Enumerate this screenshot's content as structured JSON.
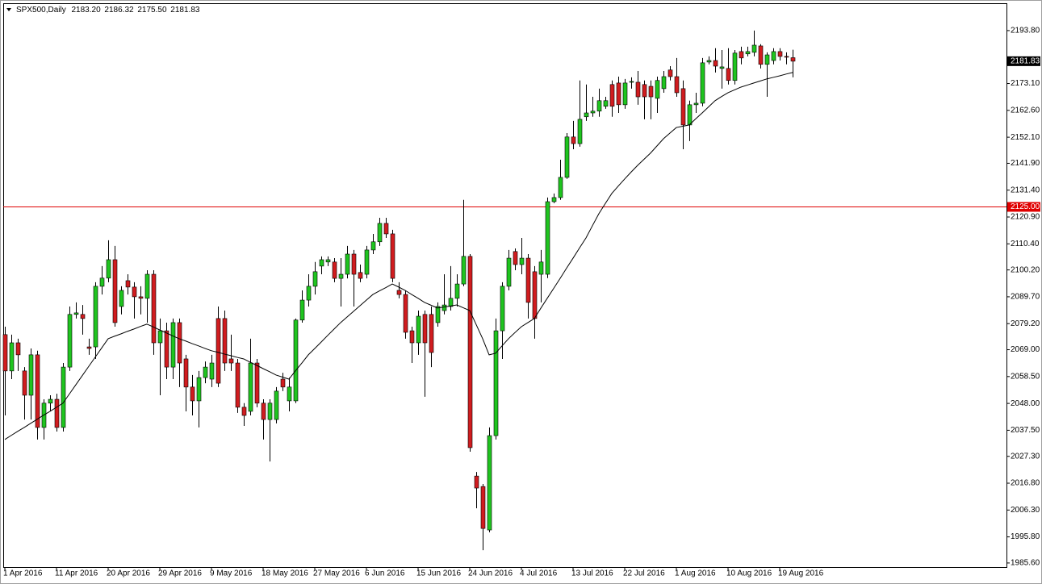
{
  "chart_data": {
    "type": "candlestick",
    "symbol": "SPX500,Daily",
    "header_ohlc": [
      "2183.20",
      "2186.32",
      "2175.50",
      "2181.83"
    ],
    "categories": [
      "1 Apr 2016",
      null,
      null,
      null,
      null,
      null,
      null,
      null,
      "11 Apr 2016",
      null,
      null,
      null,
      null,
      null,
      null,
      null,
      "20 Apr 2016",
      null,
      null,
      null,
      null,
      null,
      null,
      null,
      "29 Apr 2016",
      null,
      null,
      null,
      null,
      null,
      null,
      null,
      "9 May 2016",
      null,
      null,
      null,
      null,
      null,
      null,
      null,
      "18 May 2016",
      null,
      null,
      null,
      null,
      null,
      null,
      null,
      "27 May 2016",
      null,
      null,
      null,
      null,
      null,
      null,
      null,
      "6 Jun 2016",
      null,
      null,
      null,
      null,
      null,
      null,
      null,
      "15 Jun 2016",
      null,
      null,
      null,
      null,
      null,
      null,
      null,
      "24 Jun 2016",
      null,
      null,
      null,
      null,
      null,
      null,
      null,
      "4 Jul 2016",
      null,
      null,
      null,
      null,
      null,
      null,
      null,
      "13 Jul 2016",
      null,
      null,
      null,
      null,
      null,
      null,
      null,
      "22 Jul 2016",
      null,
      null,
      null,
      null,
      null,
      null,
      null,
      "1 Aug 2016",
      null,
      null,
      null,
      null,
      null,
      null,
      null,
      "10 Aug 2016",
      null,
      null,
      null,
      null,
      null,
      null,
      null,
      "19 Aug 2016",
      null,
      null
    ],
    "open": [
      2074.9,
      2060.7,
      2071.7,
      2060.7,
      2051.2,
      2067.0,
      2038.6,
      2048.1,
      2049.6,
      2038.6,
      2062.2,
      2082.8,
      2082.8,
      2070.1,
      2070.1,
      2093.8,
      2097.0,
      2104.2,
      2085.9,
      2096.0,
      2093.5,
      2089.7,
      2089.1,
      2098.5,
      2071.7,
      2076.4,
      2062.2,
      2079.6,
      2065.4,
      2054.4,
      2049.0,
      2058.1,
      2057.5,
      2081.2,
      2081.2,
      2065.4,
      2063.8,
      2046.5,
      2044.9,
      2063.8,
      2048.1,
      2041.7,
      2041.7,
      2057.5,
      2049.0,
      2049.0,
      2080.6,
      2088.4,
      2093.8,
      2101.7,
      2103.3,
      2103.3,
      2096.9,
      2098.5,
      2106.4,
      2099.2,
      2098.5,
      2108.0,
      2111.2,
      2118.4,
      2114.3,
      2092.2,
      2090.6,
      2076.4,
      2071.7,
      2082.8,
      2082.8,
      2079.6,
      2084.3,
      2085.9,
      2089.1,
      2094.7,
      2105.5,
      2019.6,
      2015.5,
      1998.5,
      2035.4,
      2076.4,
      2093.8,
      2107.4,
      2102.3,
      2104.8,
      2099.5,
      2098.5,
      2098.5,
      2126.9,
      2128.5,
      2136.4,
      2152.2,
      2149.6,
      2160.1,
      2161.6,
      2162.3,
      2164.2,
      2172.7,
      2173.3,
      2164.8,
      2173.6,
      2173.6,
      2172.7,
      2172.0,
      2167.3,
      2171.1,
      2178.4,
      2175.8,
      2171.1,
      2156.9,
      2164.8,
      2165.4,
      2181.5,
      2182.1,
      2179.0,
      2179.0,
      2174.3,
      2185.6,
      2184.7,
      2185.3,
      2187.8,
      2180.6,
      2182.1,
      2185.6,
      2183.7,
      2183.2
    ],
    "high": [
      2078.0,
      2074.9,
      2073.3,
      2062.2,
      2069.5,
      2068.6,
      2049.6,
      2051.2,
      2051.8,
      2063.8,
      2085.9,
      2087.5,
      2086.5,
      2073.3,
      2095.4,
      2101.7,
      2111.8,
      2109.6,
      2093.8,
      2098.5,
      2095.4,
      2093.8,
      2100.1,
      2100.1,
      2081.2,
      2079.6,
      2081.2,
      2081.2,
      2067.0,
      2059.1,
      2060.7,
      2064.4,
      2067.0,
      2085.9,
      2084.3,
      2074.9,
      2065.4,
      2048.1,
      2073.3,
      2065.4,
      2049.6,
      2049.6,
      2054.4,
      2060.0,
      2058.1,
      2081.2,
      2092.2,
      2098.5,
      2103.3,
      2105.5,
      2105.5,
      2104.8,
      2104.8,
      2109.6,
      2108.0,
      2102.3,
      2109.6,
      2114.3,
      2120.6,
      2120.6,
      2115.9,
      2095.4,
      2092.2,
      2078.0,
      2084.3,
      2084.3,
      2085.9,
      2087.5,
      2098.5,
      2101.7,
      2098.5,
      2127.6,
      2106.4,
      2021.2,
      2016.5,
      2038.6,
      2081.2,
      2095.4,
      2108.0,
      2108.6,
      2112.7,
      2106.4,
      2101.7,
      2108.0,
      2128.5,
      2130.1,
      2143.3,
      2153.7,
      2158.5,
      2174.3,
      2172.7,
      2167.9,
      2171.1,
      2167.9,
      2174.3,
      2175.8,
      2174.9,
      2175.5,
      2178.0,
      2174.3,
      2174.3,
      2175.8,
      2178.0,
      2179.9,
      2183.1,
      2174.3,
      2166.4,
      2169.5,
      2183.1,
      2183.7,
      2186.9,
      2186.2,
      2186.9,
      2186.2,
      2187.5,
      2187.5,
      2193.8,
      2188.5,
      2185.3,
      2186.9,
      2186.9,
      2185.3,
      2186.32
    ],
    "low": [
      2043.3,
      2057.5,
      2060.7,
      2041.7,
      2041.7,
      2033.9,
      2033.9,
      2044.9,
      2037.0,
      2037.0,
      2060.7,
      2081.2,
      2074.9,
      2067.0,
      2065.4,
      2090.6,
      2095.4,
      2078.0,
      2082.8,
      2090.6,
      2081.2,
      2082.8,
      2079.6,
      2067.0,
      2051.2,
      2057.5,
      2057.5,
      2054.4,
      2044.9,
      2043.3,
      2038.6,
      2055.9,
      2054.4,
      2054.4,
      2060.7,
      2060.7,
      2044.3,
      2039.2,
      2043.3,
      2046.5,
      2033.9,
      2025.3,
      2040.2,
      2052.8,
      2044.9,
      2048.1,
      2079.6,
      2085.9,
      2090.6,
      2098.5,
      2101.7,
      2095.4,
      2085.9,
      2096.9,
      2085.9,
      2095.4,
      2096.9,
      2106.4,
      2109.6,
      2112.7,
      2095.4,
      2089.1,
      2073.3,
      2063.8,
      2067.0,
      2050.6,
      2062.2,
      2078.0,
      2082.8,
      2084.3,
      2085.9,
      2093.8,
      2029.1,
      2007.0,
      1990.6,
      1997.6,
      2033.9,
      2065.4,
      2092.2,
      2100.1,
      2098.5,
      2081.2,
      2073.3,
      2087.5,
      2097.0,
      2126.3,
      2127.6,
      2135.8,
      2147.4,
      2148.4,
      2158.5,
      2160.1,
      2160.1,
      2163.2,
      2160.1,
      2161.6,
      2163.2,
      2171.1,
      2164.8,
      2159.1,
      2159.1,
      2161.6,
      2169.5,
      2174.3,
      2167.9,
      2147.4,
      2150.6,
      2161.6,
      2164.2,
      2180.6,
      2177.4,
      2171.1,
      2172.7,
      2172.7,
      2180.6,
      2183.7,
      2183.7,
      2179.0,
      2167.9,
      2180.6,
      2182.1,
      2180.6,
      2175.5
    ],
    "close": [
      2060.7,
      2071.7,
      2067.0,
      2051.2,
      2067.0,
      2038.6,
      2048.1,
      2049.6,
      2038.6,
      2062.2,
      2082.8,
      2083.4,
      2081.2,
      2069.5,
      2093.8,
      2097.0,
      2104.2,
      2079.6,
      2092.2,
      2093.5,
      2089.7,
      2089.1,
      2098.5,
      2071.7,
      2076.4,
      2062.2,
      2079.6,
      2063.8,
      2054.4,
      2049.0,
      2058.1,
      2062.2,
      2063.8,
      2055.9,
      2063.8,
      2063.8,
      2046.5,
      2043.3,
      2063.8,
      2048.1,
      2041.7,
      2048.1,
      2052.8,
      2054.4,
      2054.4,
      2080.6,
      2088.4,
      2093.8,
      2099.5,
      2104.2,
      2104.2,
      2096.9,
      2098.5,
      2106.4,
      2098.5,
      2096.9,
      2108.0,
      2111.2,
      2118.4,
      2114.3,
      2096.9,
      2090.6,
      2075.8,
      2071.7,
      2082.1,
      2071.7,
      2067.9,
      2085.9,
      2086.5,
      2089.1,
      2094.7,
      2105.5,
      2030.7,
      2014.9,
      1999.1,
      2035.4,
      2076.4,
      2093.8,
      2104.8,
      2102.3,
      2104.8,
      2087.5,
      2081.2,
      2103.3,
      2126.9,
      2128.5,
      2136.4,
      2152.2,
      2149.6,
      2159.1,
      2161.6,
      2162.3,
      2166.4,
      2166.4,
      2164.2,
      2164.8,
      2173.3,
      2173.9,
      2167.9,
      2167.9,
      2167.9,
      2174.3,
      2175.8,
      2175.8,
      2169.5,
      2156.9,
      2164.8,
      2165.4,
      2181.2,
      2182.1,
      2179.9,
      2179.6,
      2174.3,
      2185.0,
      2183.1,
      2185.6,
      2188.1,
      2180.6,
      2184.3,
      2185.6,
      2183.7,
      2183.5,
      2181.83
    ],
    "up_color": "#1fc41f",
    "down_color": "#d01c1f",
    "ma": {
      "color": "#000000",
      "values": [
        2033.9,
        2035.5,
        2037.1,
        2038.6,
        2040.2,
        2041.8,
        2043.4,
        2044.9,
        2046.5,
        2048.1,
        2051.7,
        2055.3,
        2058.9,
        2062.5,
        2066.1,
        2069.7,
        2073.3,
        2074.3,
        2075.2,
        2076.2,
        2077.1,
        2078.1,
        2079.0,
        2077.9,
        2076.7,
        2075.6,
        2074.4,
        2073.3,
        2072.4,
        2071.4,
        2070.5,
        2069.5,
        2068.6,
        2068.0,
        2067.3,
        2066.7,
        2066.0,
        2065.4,
        2064.1,
        2062.9,
        2061.6,
        2060.4,
        2059.1,
        2058.3,
        2057.5,
        2060.7,
        2063.8,
        2067.0,
        2069.5,
        2072.0,
        2074.6,
        2077.1,
        2079.6,
        2081.8,
        2084.0,
        2086.2,
        2088.4,
        2090.6,
        2092.0,
        2093.3,
        2094.7,
        2093.5,
        2092.2,
        2090.6,
        2089.1,
        2087.5,
        2086.4,
        2085.3,
        2085.7,
        2086.1,
        2086.5,
        2085.4,
        2084.3,
        2078.8,
        2073.3,
        2067.0,
        2067.6,
        2070.5,
        2073.3,
        2075.7,
        2078.0,
        2079.6,
        2081.2,
        2085.2,
        2089.1,
        2093.0,
        2096.9,
        2100.9,
        2104.8,
        2108.8,
        2112.7,
        2117.5,
        2122.2,
        2126.2,
        2130.1,
        2133.0,
        2135.8,
        2138.5,
        2141.1,
        2143.5,
        2145.9,
        2148.7,
        2151.5,
        2153.7,
        2155.9,
        2156.4,
        2156.9,
        2159.3,
        2161.6,
        2164.0,
        2166.4,
        2168.0,
        2169.5,
        2170.6,
        2171.7,
        2172.5,
        2173.3,
        2174.1,
        2174.9,
        2175.5,
        2176.1,
        2176.8,
        2177.4
      ]
    },
    "hline": {
      "value": 2125,
      "label": "2125.00",
      "color": "#e00000"
    },
    "last_price": {
      "value": 2181.83,
      "label": "2181.83"
    },
    "ylim": [
      1984.0,
      2204.5
    ],
    "yticks": [
      {
        "value": 1985.6,
        "label": "1985.60"
      },
      {
        "value": 1995.8,
        "label": "1995.80"
      },
      {
        "value": 2006.3,
        "label": "2006.30"
      },
      {
        "value": 2016.8,
        "label": "2016.80"
      },
      {
        "value": 2027.3,
        "label": "2027.30"
      },
      {
        "value": 2037.5,
        "label": "2037.50"
      },
      {
        "value": 2048.0,
        "label": "2048.00"
      },
      {
        "value": 2058.5,
        "label": "2058.50"
      },
      {
        "value": 2069.0,
        "label": "2069.00"
      },
      {
        "value": 2079.2,
        "label": "2079.20"
      },
      {
        "value": 2089.7,
        "label": "2089.70"
      },
      {
        "value": 2100.2,
        "label": "2100.20"
      },
      {
        "value": 2110.4,
        "label": "2110.40"
      },
      {
        "value": 2120.9,
        "label": "2120.90"
      },
      {
        "value": 2131.4,
        "label": "2131.40"
      },
      {
        "value": 2141.9,
        "label": "2141.90"
      },
      {
        "value": 2152.1,
        "label": "2152.10"
      },
      {
        "value": 2162.6,
        "label": "2162.60"
      },
      {
        "value": 2173.1,
        "label": "2173.10"
      },
      {
        "value": 2193.8,
        "label": "2193.80"
      }
    ]
  }
}
